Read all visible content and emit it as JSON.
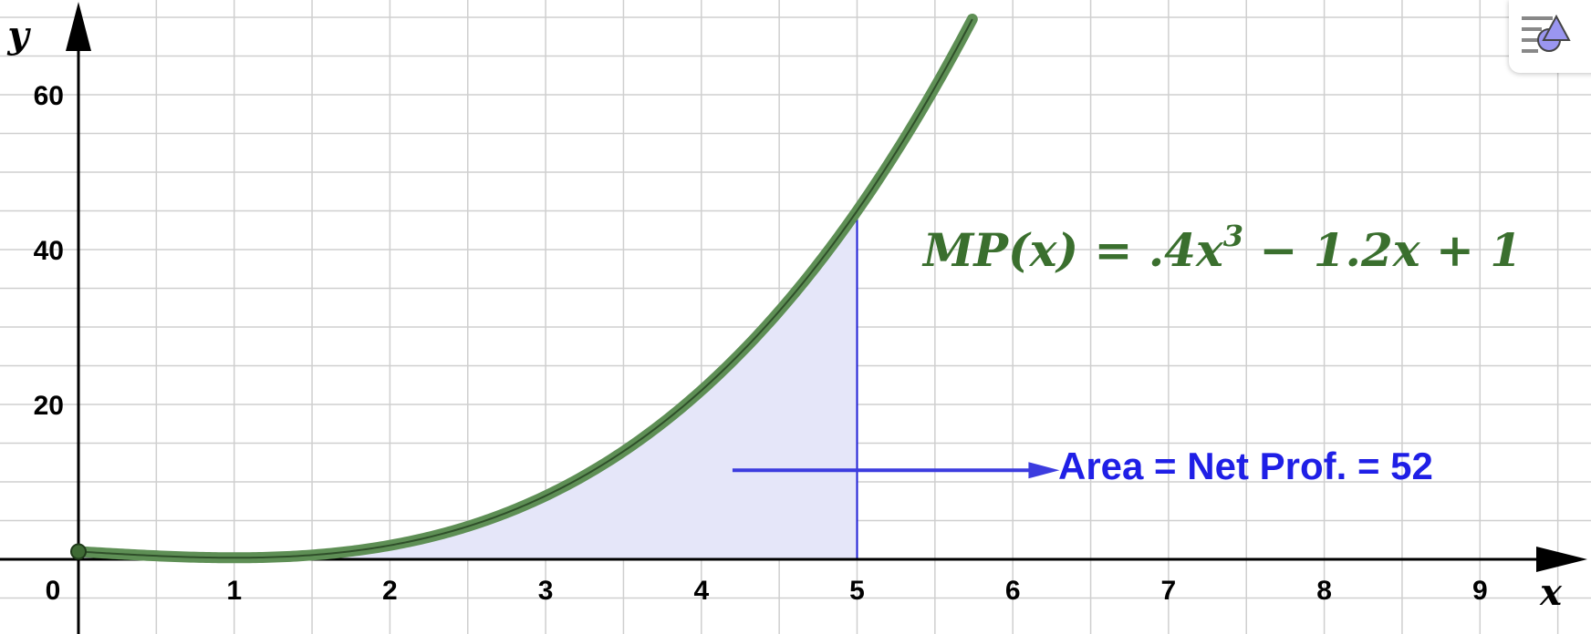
{
  "chart_data": {
    "type": "line",
    "xlabel": "x",
    "ylabel": "y",
    "xlim": [
      0,
      9.9
    ],
    "ylim": [
      -9.5,
      71.5
    ],
    "x_ticks": [
      1,
      2,
      3,
      4,
      5,
      6,
      7,
      8,
      9
    ],
    "y_ticks": [
      20,
      40,
      60
    ],
    "origin_label": "0",
    "grid": true,
    "function": {
      "label": "MP(x) = .4x^3 − 1.2x + 1",
      "coefficients": {
        "a3": 0.4,
        "a2": 0,
        "a1": -1.2,
        "a0": 1
      },
      "x_range": [
        0,
        5.75
      ],
      "color": "#5e8f55"
    },
    "shaded_area": {
      "from": 0,
      "to": 5,
      "value": 52,
      "label": "Area = Net Prof. = 52",
      "fill_color": "#e5e6f9",
      "edge_color": "#1f1fd6"
    },
    "start_point": {
      "x": 0,
      "y": 1,
      "color": "#3f6b35"
    },
    "arrow": {
      "from": [
        4.2,
        11.5
      ],
      "to": [
        6.3,
        11.5
      ],
      "color": "#3c3cdf"
    },
    "annotations": [
      {
        "text_parts": {
          "pre": "MP(x) = .4x",
          "exp": "3",
          "post": " − 1.2x + 1"
        },
        "color": "#3a6f2e"
      },
      {
        "text": "Area = Net Prof. = 52",
        "color": "#1f1fe6"
      }
    ]
  },
  "toolbar": {
    "style_bar_icon": "style-bar-icon"
  }
}
